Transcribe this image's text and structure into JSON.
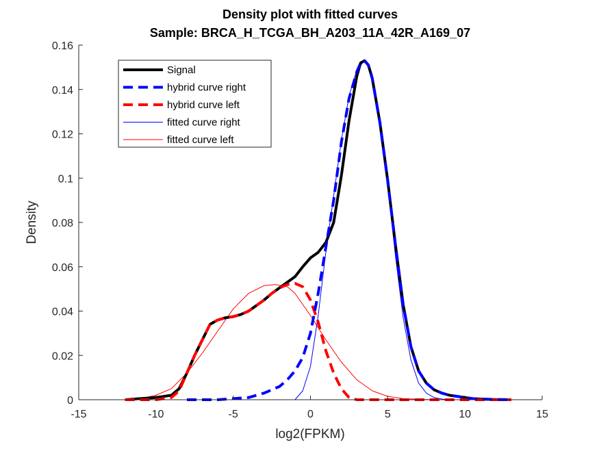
{
  "chart_data": {
    "type": "line",
    "title": "Density plot with fitted curves",
    "subtitle": "Sample: BRCA_H_TCGA_BH_A203_11A_42R_A169_07",
    "xlabel": "log2(FPKM)",
    "ylabel": "Density",
    "xlim": [
      -15,
      15
    ],
    "ylim": [
      0,
      0.16
    ],
    "xticks": [
      "-15",
      "-10",
      "-5",
      "0",
      "5",
      "10",
      "15"
    ],
    "yticks": [
      "0",
      "0.02",
      "0.04",
      "0.06",
      "0.08",
      "0.1",
      "0.12",
      "0.14",
      "0.16"
    ],
    "legend_position": "top-left",
    "grid": false,
    "series": [
      {
        "name": "Signal",
        "color": "#000000",
        "style": "solid-thick",
        "x": [
          -12,
          -11,
          -10,
          -9,
          -8.5,
          -8,
          -7.5,
          -7,
          -6.5,
          -6,
          -5.5,
          -5,
          -4.5,
          -4,
          -3.5,
          -3,
          -2.5,
          -2,
          -1.5,
          -1,
          -0.5,
          0,
          0.5,
          1,
          1.5,
          2,
          2.5,
          3,
          3.25,
          3.5,
          3.75,
          4,
          4.5,
          5,
          5.5,
          6,
          6.5,
          7,
          7.5,
          8,
          8.5,
          9,
          9.5,
          10,
          10.5,
          11,
          12,
          13
        ],
        "y": [
          0,
          0.0005,
          0.001,
          0.002,
          0.005,
          0.012,
          0.02,
          0.027,
          0.034,
          0.036,
          0.037,
          0.0375,
          0.0385,
          0.04,
          0.0425,
          0.045,
          0.048,
          0.0505,
          0.053,
          0.0555,
          0.06,
          0.064,
          0.0665,
          0.071,
          0.08,
          0.101,
          0.126,
          0.146,
          0.152,
          0.153,
          0.151,
          0.145,
          0.125,
          0.099,
          0.07,
          0.043,
          0.024,
          0.013,
          0.0075,
          0.0045,
          0.003,
          0.002,
          0.0015,
          0.001,
          0.0005,
          0.0003,
          0.0001,
          0
        ]
      },
      {
        "name": "hybrid curve right",
        "color": "#0000ff",
        "style": "dashed-thick",
        "x": [
          -8,
          -7,
          -6,
          -5,
          -4,
          -3,
          -2,
          -1.5,
          -1,
          -0.5,
          0,
          0.5,
          1,
          1.5,
          2,
          2.5,
          3,
          3.25,
          3.5,
          3.75,
          4,
          4.5,
          5,
          5.5,
          6,
          6.5,
          7,
          7.5,
          8,
          8.5,
          9,
          9.5,
          10,
          10.5,
          11,
          12,
          13
        ],
        "y": [
          0,
          0,
          0,
          0.0005,
          0.001,
          0.003,
          0.006,
          0.009,
          0.013,
          0.019,
          0.03,
          0.048,
          0.069,
          0.09,
          0.116,
          0.136,
          0.148,
          0.152,
          0.153,
          0.151,
          0.145,
          0.125,
          0.099,
          0.07,
          0.043,
          0.024,
          0.013,
          0.0075,
          0.0045,
          0.003,
          0.002,
          0.0015,
          0.001,
          0.0005,
          0.0003,
          0.0001,
          0
        ]
      },
      {
        "name": "hybrid curve left",
        "color": "#ff0000",
        "style": "dashed-thick",
        "x": [
          -12,
          -11,
          -10,
          -9,
          -8.5,
          -8,
          -7.5,
          -7,
          -6.5,
          -6,
          -5.5,
          -5,
          -4.5,
          -4,
          -3.5,
          -3,
          -2.5,
          -2,
          -1.5,
          -1,
          -0.5,
          0,
          0.5,
          1,
          1.5,
          2,
          2.5,
          3,
          4,
          5,
          6,
          7,
          8,
          9,
          10,
          11,
          12,
          13
        ],
        "y": [
          0,
          0,
          0,
          0.001,
          0.004,
          0.012,
          0.02,
          0.027,
          0.034,
          0.036,
          0.037,
          0.0375,
          0.0385,
          0.04,
          0.0425,
          0.045,
          0.048,
          0.0505,
          0.052,
          0.0525,
          0.051,
          0.045,
          0.035,
          0.022,
          0.012,
          0.005,
          0.001,
          0,
          0,
          0,
          0,
          0,
          0,
          0,
          0,
          0,
          0,
          0
        ]
      },
      {
        "name": "fitted curve right",
        "color": "#0000ff",
        "style": "solid-thin",
        "x": [
          -1,
          -0.5,
          0,
          0.5,
          1,
          1.5,
          2,
          2.5,
          3,
          3.5,
          4,
          4.5,
          5,
          5.5,
          6,
          6.5,
          7,
          7.5,
          8,
          8.5,
          9
        ],
        "y": [
          0,
          0.004,
          0.015,
          0.038,
          0.067,
          0.092,
          0.117,
          0.137,
          0.149,
          0.153,
          0.147,
          0.126,
          0.097,
          0.065,
          0.037,
          0.018,
          0.0075,
          0.003,
          0.001,
          0.0003,
          0
        ]
      },
      {
        "name": "fitted curve left",
        "color": "#ff0000",
        "style": "solid-thin",
        "x": [
          -12,
          -11,
          -10,
          -9,
          -8,
          -7,
          -6,
          -5,
          -4,
          -3,
          -2.25,
          -1.5,
          -1,
          0,
          1,
          2,
          3,
          4,
          5,
          6,
          7,
          8
        ],
        "y": [
          0,
          0.0005,
          0.002,
          0.005,
          0.012,
          0.021,
          0.031,
          0.041,
          0.048,
          0.0515,
          0.052,
          0.051,
          0.048,
          0.038,
          0.027,
          0.017,
          0.009,
          0.004,
          0.0015,
          0.0005,
          0.0002,
          0
        ]
      }
    ]
  }
}
